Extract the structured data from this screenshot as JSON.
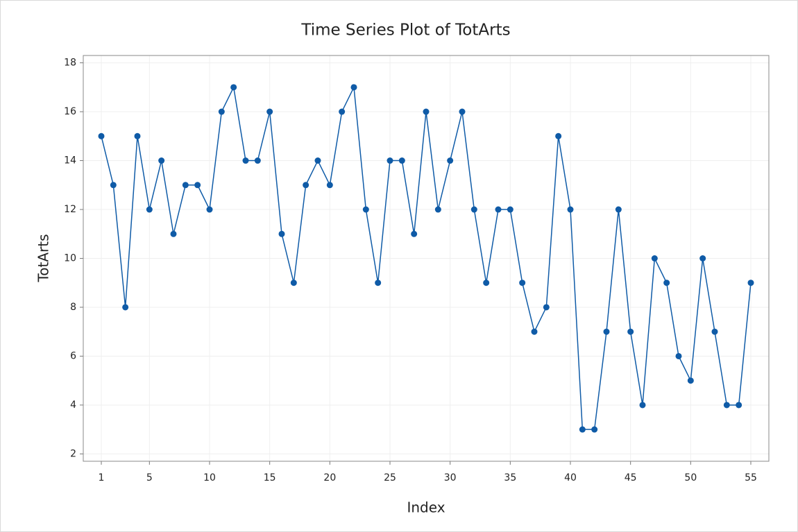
{
  "chart_data": {
    "type": "line",
    "title": "Time Series Plot of TotArts",
    "xlabel": "Index",
    "ylabel": "TotArts",
    "x": [
      1,
      2,
      3,
      4,
      5,
      6,
      7,
      8,
      9,
      10,
      11,
      12,
      13,
      14,
      15,
      16,
      17,
      18,
      19,
      20,
      21,
      22,
      23,
      24,
      25,
      26,
      27,
      28,
      29,
      30,
      31,
      32,
      33,
      34,
      35,
      36,
      37,
      38,
      39,
      40,
      41,
      42,
      43,
      44,
      45,
      46,
      47,
      48,
      49,
      50,
      51,
      52,
      53,
      54,
      55
    ],
    "series": [
      {
        "name": "TotArts",
        "color": "#0f5ba7",
        "values": [
          15,
          13,
          8,
          15,
          12,
          14,
          11,
          13,
          13,
          12,
          16,
          17,
          14,
          14,
          16,
          11,
          9,
          13,
          14,
          13,
          16,
          17,
          12,
          9,
          14,
          14,
          11,
          16,
          12,
          14,
          16,
          12,
          9,
          12,
          12,
          9,
          7,
          8,
          15,
          12,
          3,
          3,
          7,
          12,
          7,
          4,
          10,
          9,
          6,
          5,
          10,
          7,
          4,
          4,
          9
        ]
      }
    ],
    "xlim": [
      -0.5,
      56.5
    ],
    "xticks": [
      1,
      5,
      10,
      15,
      20,
      25,
      30,
      35,
      40,
      45,
      50,
      55
    ],
    "ylim": [
      1.7,
      18.3
    ],
    "yticks": [
      2,
      4,
      6,
      8,
      10,
      12,
      14,
      16,
      18
    ],
    "grid": true
  }
}
